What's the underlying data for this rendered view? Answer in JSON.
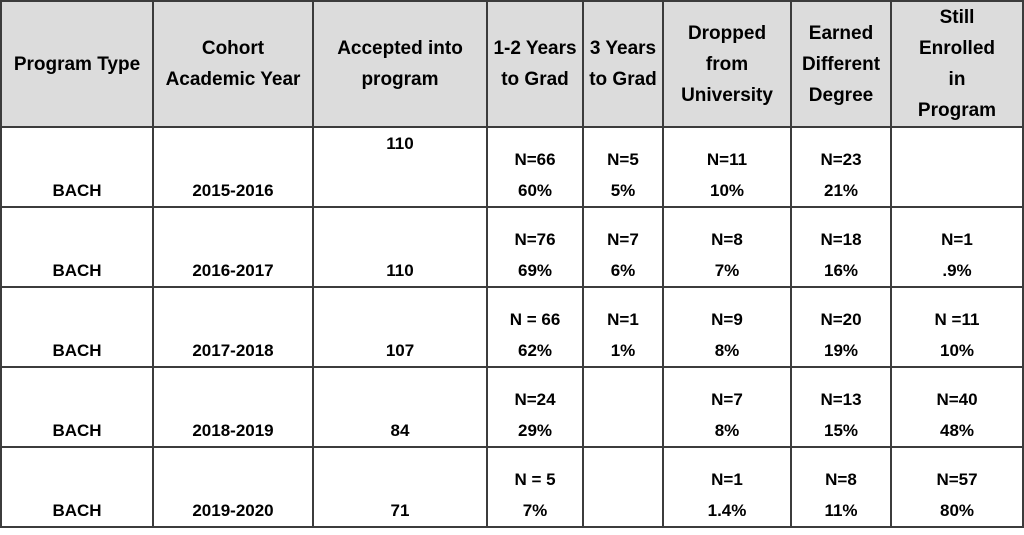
{
  "headers": [
    [
      "Program Type"
    ],
    [
      "Cohort",
      "Academic Year"
    ],
    [
      "Accepted into",
      "program"
    ],
    [
      "1-2 Years",
      "to Grad"
    ],
    [
      "3 Years",
      "to Grad"
    ],
    [
      "Dropped",
      "from",
      "University"
    ],
    [
      "Earned",
      "Different",
      "Degree"
    ],
    [
      "Still",
      "Enrolled",
      "in",
      "Program"
    ]
  ],
  "rows": [
    {
      "program": "BACH",
      "year": "2015-2016",
      "accepted": "110",
      "grad12": [
        "N=66",
        "60%"
      ],
      "grad3": [
        "N=5",
        "5%"
      ],
      "dropped": [
        "N=11",
        "10%"
      ],
      "earned": [
        "N=23",
        "21%"
      ],
      "still": [
        "",
        ""
      ]
    },
    {
      "program": "BACH",
      "year": "2016-2017",
      "accepted": "110",
      "grad12": [
        "N=76",
        "69%"
      ],
      "grad3": [
        "N=7",
        "6%"
      ],
      "dropped": [
        "N=8",
        "7%"
      ],
      "earned": [
        "N=18",
        "16%"
      ],
      "still": [
        "N=1",
        ".9%"
      ]
    },
    {
      "program": "BACH",
      "year": "2017-2018",
      "accepted": "107",
      "grad12": [
        "N = 66",
        "62%"
      ],
      "grad3": [
        "N=1",
        "1%"
      ],
      "dropped": [
        "N=9",
        "8%"
      ],
      "earned": [
        "N=20",
        "19%"
      ],
      "still": [
        "N =11",
        "10%"
      ]
    },
    {
      "program": "BACH",
      "year": "2018-2019",
      "accepted": "84",
      "grad12": [
        "N=24",
        "29%"
      ],
      "grad3": [
        "",
        ""
      ],
      "dropped": [
        "N=7",
        "8%"
      ],
      "earned": [
        "N=13",
        "15%"
      ],
      "still": [
        "N=40",
        "48%"
      ]
    },
    {
      "program": "BACH",
      "year": "2019-2020",
      "accepted": "71",
      "grad12": [
        "N = 5",
        "7%"
      ],
      "grad3": [
        "",
        ""
      ],
      "dropped": [
        "N=1",
        "1.4%"
      ],
      "earned": [
        "N=8",
        "11%"
      ],
      "still": [
        "N=57",
        "80%"
      ]
    }
  ]
}
